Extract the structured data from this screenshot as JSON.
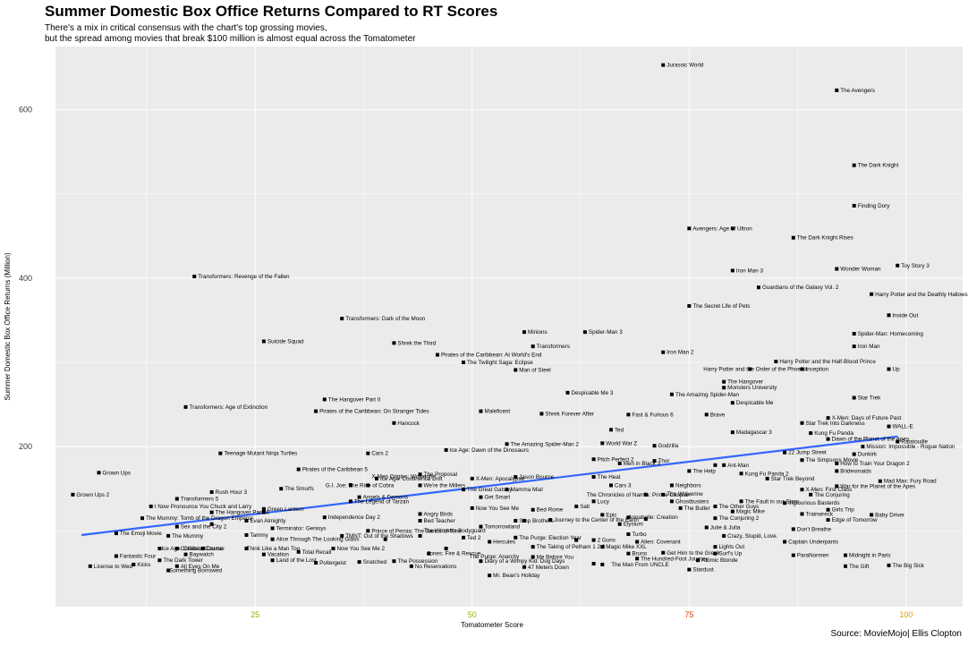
{
  "title": "Summer Domestic Box Office Returns Compared to RT Scores",
  "subtitle": [
    "There's a mix in critical consensus with the chart's top grossing movies,",
    "but the spread among movies that break $100 million is almost equal across the Tomatometer"
  ],
  "caption": "Source: MovieMojo| Ellis Clopton",
  "colors": {
    "panel_background": "#ebebeb",
    "grid": "#ffffff",
    "point": "#000000",
    "trend_line": "#3366ff",
    "x_tick_colors": [
      "#8db600",
      "#8db600",
      "#e03c00",
      "#e0a000"
    ]
  },
  "chart_data": {
    "type": "scatter",
    "xlabel": "Tomatometer Score",
    "ylabel": "Summer Domestic Box Office Returns (Million)",
    "xlim": [
      2,
      106.5
    ],
    "ylim": [
      10,
      675
    ],
    "x_ticks": [
      25,
      50,
      75,
      100
    ],
    "y_ticks": [
      200,
      400,
      600
    ],
    "grid": true,
    "legend": "none",
    "trend_line": {
      "x": [
        5,
        99
      ],
      "y": [
        95,
        212
      ]
    },
    "points": [
      {
        "x": 72,
        "y": 653,
        "label": "Jurassic World"
      },
      {
        "x": 92,
        "y": 623,
        "label": "The Avengers"
      },
      {
        "x": 94,
        "y": 534,
        "label": "The Dark Knight"
      },
      {
        "x": 94,
        "y": 486,
        "label": "Finding Dory"
      },
      {
        "x": 75,
        "y": 459,
        "label": "Avengers: Age of Ultron"
      },
      {
        "x": 87,
        "y": 448,
        "label": "The Dark Knight Rises"
      },
      {
        "x": 80,
        "y": 459,
        "label": "Avengers: Age of Ultron",
        "hide": true
      },
      {
        "x": 80,
        "y": 409,
        "label": "Iron Man 3"
      },
      {
        "x": 92,
        "y": 411,
        "label": "Wonder Woman"
      },
      {
        "x": 99,
        "y": 415,
        "label": "Toy Story 3"
      },
      {
        "x": 18,
        "y": 402,
        "label": "Transformers: Revenge of the Fallen"
      },
      {
        "x": 83,
        "y": 389,
        "label": "Guardians of the Galaxy Vol. 2"
      },
      {
        "x": 96,
        "y": 381,
        "label": "Harry Potter and the Deathly Hallows Part 2"
      },
      {
        "x": 75,
        "y": 367,
        "label": "The Secret Life of Pets"
      },
      {
        "x": 98,
        "y": 356,
        "label": "Inside Out"
      },
      {
        "x": 35,
        "y": 352,
        "label": "Transformers: Dark of the Moon"
      },
      {
        "x": 56,
        "y": 336,
        "label": "Minions"
      },
      {
        "x": 63,
        "y": 336,
        "label": "Spider-Man 3"
      },
      {
        "x": 94,
        "y": 334,
        "label": "Spider-Man: Homecoming"
      },
      {
        "x": 26,
        "y": 325,
        "label": "Suicide Squad"
      },
      {
        "x": 41,
        "y": 323,
        "label": "Shrek the Third"
      },
      {
        "x": 57,
        "y": 319,
        "label": "Transformers"
      },
      {
        "x": 94,
        "y": 319,
        "label": "Iron Man"
      },
      {
        "x": 72,
        "y": 312,
        "label": "Iron Man 2"
      },
      {
        "x": 46,
        "y": 309,
        "label": "Pirates of the Caribbean: At World's End"
      },
      {
        "x": 49,
        "y": 300,
        "label": "The Twilight Saga: Eclipse"
      },
      {
        "x": 85,
        "y": 301,
        "label": "Harry Potter and the Half-Blood Prince"
      },
      {
        "x": 88,
        "y": 292,
        "label": "Inception"
      },
      {
        "x": 55,
        "y": 291,
        "label": "Man of Steel"
      },
      {
        "x": 98,
        "y": 292,
        "label": "Up"
      },
      {
        "x": 82,
        "y": 292,
        "label": "Harry Potter and the Order of the Phoenix",
        "dx": -56
      },
      {
        "x": 79,
        "y": 277,
        "label": "The Hangover"
      },
      {
        "x": 79,
        "y": 270,
        "label": "Monsters University"
      },
      {
        "x": 61,
        "y": 264,
        "label": "Despicable Me 3"
      },
      {
        "x": 73,
        "y": 262,
        "label": "The Amazing Spider-Man"
      },
      {
        "x": 94,
        "y": 258,
        "label": "Star Trek"
      },
      {
        "x": 33,
        "y": 256,
        "label": "The Hangover Part II"
      },
      {
        "x": 80,
        "y": 252,
        "label": "Despicable Me"
      },
      {
        "x": 17,
        "y": 247,
        "label": "Transformers: Age of Extinction"
      },
      {
        "x": 32,
        "y": 242,
        "label": "Pirates of the Caribbean: On Stranger Tides"
      },
      {
        "x": 51,
        "y": 242,
        "label": "Maleficent"
      },
      {
        "x": 58,
        "y": 239,
        "label": "Shrek Forever After"
      },
      {
        "x": 68,
        "y": 238,
        "label": "Fast & Furious 6"
      },
      {
        "x": 77,
        "y": 238,
        "label": "Brave"
      },
      {
        "x": 91,
        "y": 234,
        "label": "X-Men: Days of Future Past"
      },
      {
        "x": 41,
        "y": 228,
        "label": "Hancock"
      },
      {
        "x": 88,
        "y": 228,
        "label": "Star Trek Into Darkness"
      },
      {
        "x": 66,
        "y": 220,
        "label": "Ted"
      },
      {
        "x": 80,
        "y": 217,
        "label": "Madagascar 3"
      },
      {
        "x": 89,
        "y": 216,
        "label": "Kung Fu Panda"
      },
      {
        "x": 98,
        "y": 224,
        "label": "WALL-E"
      },
      {
        "x": 91,
        "y": 209,
        "label": "Dawn of the Planet of the Apes"
      },
      {
        "x": 99,
        "y": 206,
        "label": "Ratatouille"
      },
      {
        "x": 54,
        "y": 203,
        "label": "The Amazing Spider-Man 2"
      },
      {
        "x": 65,
        "y": 204,
        "label": "World War Z"
      },
      {
        "x": 71,
        "y": 201,
        "label": "Godzilla"
      },
      {
        "x": 95,
        "y": 200,
        "label": "Mission: Impossible - Rogue Nation"
      },
      {
        "x": 47,
        "y": 196,
        "label": "Ice Age: Dawn of the Dinosaurs"
      },
      {
        "x": 86,
        "y": 193,
        "label": "22 Jump Street"
      },
      {
        "x": 94,
        "y": 191,
        "label": "Dunkirk"
      },
      {
        "x": 21,
        "y": 192,
        "label": "Teenage Mutant Ninja Turtles"
      },
      {
        "x": 38,
        "y": 192,
        "label": "Cars 2"
      },
      {
        "x": 64,
        "y": 185,
        "label": "Pitch Perfect 2"
      },
      {
        "x": 71,
        "y": 183,
        "label": "Thor"
      },
      {
        "x": 79,
        "y": 178,
        "label": "Ant-Man"
      },
      {
        "x": 88,
        "y": 184,
        "label": "The Simpsons Movie"
      },
      {
        "x": 92,
        "y": 180,
        "label": "How to Train Your Dragon 2"
      },
      {
        "x": 67,
        "y": 180,
        "label": "Men in Black 3"
      },
      {
        "x": 78,
        "y": 178,
        "label": "Ant-Man",
        "hide": true
      },
      {
        "x": 30,
        "y": 173,
        "label": "Pirates of the Caribbean 5"
      },
      {
        "x": 75,
        "y": 171,
        "label": "The Help"
      },
      {
        "x": 81,
        "y": 168,
        "label": "Kung Fu Panda 2"
      },
      {
        "x": 92,
        "y": 171,
        "label": "Bridesmaids"
      },
      {
        "x": 84,
        "y": 162,
        "label": "Star Trek Beyond"
      },
      {
        "x": 44,
        "y": 167,
        "label": "The Proposal"
      },
      {
        "x": 39,
        "y": 162,
        "label": "Ice Age: Continental Drift"
      },
      {
        "x": 50,
        "y": 162,
        "label": "X-Men: Apocalypse"
      },
      {
        "x": 55,
        "y": 164,
        "label": "Jason Bourne"
      },
      {
        "x": 64,
        "y": 164,
        "label": "The Heat"
      },
      {
        "x": 97,
        "y": 159,
        "label": "Mad Max: Fury Road"
      },
      {
        "x": 36,
        "y": 154,
        "label": "G.I. Joe: The Rise of Cobra",
        "dx": -32
      },
      {
        "x": 38,
        "y": 154,
        "label": "X-Men Origins: Wolverine",
        "dy": -10
      },
      {
        "x": 44,
        "y": 154,
        "label": "We're the Millers"
      },
      {
        "x": 66,
        "y": 154,
        "label": "Cars 3"
      },
      {
        "x": 73,
        "y": 154,
        "label": "Neighbors"
      },
      {
        "x": 88,
        "y": 149,
        "label": "X-Men: First Class"
      },
      {
        "x": 92,
        "y": 153,
        "label": "War for the Planet of the Apes"
      },
      {
        "x": 49,
        "y": 149,
        "label": "The Great Gatsby"
      },
      {
        "x": 54,
        "y": 149,
        "label": "Mamma Mia!"
      },
      {
        "x": 28,
        "y": 150,
        "label": "The Smurfs"
      },
      {
        "x": 20,
        "y": 146,
        "label": "Rush Hour 3"
      },
      {
        "x": 4,
        "y": 143,
        "label": "Grown Ups 2"
      },
      {
        "x": 7,
        "y": 169,
        "label": "Grown Ups"
      },
      {
        "x": 70,
        "y": 143,
        "label": "The Chronicles of Narnia: Prince Caspian",
        "dx": -70
      },
      {
        "x": 72,
        "y": 143,
        "label": "The Wolverine",
        "dy": -1
      },
      {
        "x": 89,
        "y": 143,
        "label": "The Conjuring"
      },
      {
        "x": 37,
        "y": 140,
        "label": "Angels & Demons"
      },
      {
        "x": 51,
        "y": 140,
        "label": "Get Smart"
      },
      {
        "x": 36,
        "y": 135,
        "label": "The Legend of Tarzan"
      },
      {
        "x": 73,
        "y": 135,
        "label": "Ghostbusters"
      },
      {
        "x": 81,
        "y": 135,
        "label": "The Fault in our Stars"
      },
      {
        "x": 16,
        "y": 138,
        "label": "Transformers 5"
      },
      {
        "x": 64,
        "y": 135,
        "label": "Lucy"
      },
      {
        "x": 78,
        "y": 129,
        "label": "The Other Guys"
      },
      {
        "x": 86,
        "y": 133,
        "label": "Inglourious Basterds"
      },
      {
        "x": 13,
        "y": 129,
        "label": "I Now Pronounce You Chuck and Larry"
      },
      {
        "x": 26,
        "y": 126,
        "label": "Green Lantern"
      },
      {
        "x": 50,
        "y": 127,
        "label": "Now You See Me"
      },
      {
        "x": 57,
        "y": 125,
        "label": "Bed Rome"
      },
      {
        "x": 62,
        "y": 129,
        "label": "Salt"
      },
      {
        "x": 74,
        "y": 127,
        "label": "The Butler"
      },
      {
        "x": 80,
        "y": 123,
        "label": "Magic Mike"
      },
      {
        "x": 91,
        "y": 125,
        "label": "Girls Trip"
      },
      {
        "x": 96,
        "y": 119,
        "label": "Baby Driver"
      },
      {
        "x": 20,
        "y": 122,
        "label": "The Hangover Part III"
      },
      {
        "x": 26,
        "y": 122,
        "label": "Ant-Man",
        "hide": true
      },
      {
        "x": 44,
        "y": 120,
        "label": "Angry Birds"
      },
      {
        "x": 65,
        "y": 119,
        "label": "Epic"
      },
      {
        "x": 88,
        "y": 120,
        "label": "Trainwreck"
      },
      {
        "x": 12,
        "y": 115,
        "label": "The Mummy: Tomb of the Dragon Emperor"
      },
      {
        "x": 33,
        "y": 116,
        "label": "Independence Day 2"
      },
      {
        "x": 68,
        "y": 116,
        "label": "Annabelle: Creation",
        "dx": -4
      },
      {
        "x": 44,
        "y": 112,
        "label": "Bed Teacher"
      },
      {
        "x": 55,
        "y": 112,
        "label": "Step Brothers"
      },
      {
        "x": 59,
        "y": 113,
        "label": "Journey to the Center of the Earth"
      },
      {
        "x": 70,
        "y": 114,
        "label": "Annabelle: Creation",
        "hide": true
      },
      {
        "x": 78,
        "y": 115,
        "label": "The Conjuring 2"
      },
      {
        "x": 91,
        "y": 113,
        "label": "Edge of Tomorrow"
      },
      {
        "x": 24,
        "y": 112,
        "label": "Evan Almighty"
      },
      {
        "x": 20,
        "y": 108,
        "label": "Ant-Man",
        "hide": true
      },
      {
        "x": 51,
        "y": 105,
        "label": "Tomorrowland"
      },
      {
        "x": 67,
        "y": 108,
        "label": "Elysium"
      },
      {
        "x": 77,
        "y": 104,
        "label": "Julie & Julia"
      },
      {
        "x": 87,
        "y": 102,
        "label": "Don't Breathe"
      },
      {
        "x": 16,
        "y": 105,
        "label": "Sex and the City 2"
      },
      {
        "x": 27,
        "y": 103,
        "label": "Terminator: Genisys"
      },
      {
        "x": 38,
        "y": 100,
        "label": "Prince of Persia: The Sands of Time"
      },
      {
        "x": 9,
        "y": 97,
        "label": "The Emoji Movie"
      },
      {
        "x": 15,
        "y": 94,
        "label": "The Mummy"
      },
      {
        "x": 24,
        "y": 95,
        "label": "Tammy"
      },
      {
        "x": 35,
        "y": 94,
        "label": "TMNT: Out of the Shadows"
      },
      {
        "x": 44,
        "y": 94,
        "label": "The Hitman's Bodyguard",
        "dy": -6
      },
      {
        "x": 49,
        "y": 92,
        "label": "Ted 2"
      },
      {
        "x": 55,
        "y": 92,
        "label": "The Purge: Election Year"
      },
      {
        "x": 68,
        "y": 96,
        "label": "Turbo"
      },
      {
        "x": 79,
        "y": 94,
        "label": "Crazy, Stupid, Love."
      },
      {
        "x": 86,
        "y": 87,
        "label": "Captain Underpants"
      },
      {
        "x": 27,
        "y": 90,
        "label": "Alice Through The Looking Glass"
      },
      {
        "x": 40,
        "y": 90,
        "label": "The Hitman's Bodyguard",
        "hide": true
      },
      {
        "x": 52,
        "y": 87,
        "label": "Hercules"
      },
      {
        "x": 64,
        "y": 89,
        "label": "2 Guns"
      },
      {
        "x": 69,
        "y": 87,
        "label": "Alien: Covenant"
      },
      {
        "x": 62,
        "y": 89,
        "label": "2 Guns",
        "hide": true
      },
      {
        "x": 16,
        "y": 79,
        "label": "Collateral"
      },
      {
        "x": 19,
        "y": 79,
        "label": "Course",
        "dx": -2
      },
      {
        "x": 24,
        "y": 79,
        "label": "Think Like a Man Too",
        "dx": -4
      },
      {
        "x": 14,
        "y": 79,
        "label": "Ice Age: Collision Course",
        "dx": -2
      },
      {
        "x": 34,
        "y": 79,
        "label": "Now You See Me 2"
      },
      {
        "x": 57,
        "y": 81,
        "label": "The Taking of Pelham 1 2 3"
      },
      {
        "x": 65,
        "y": 81,
        "label": "Magic Mike XXL"
      },
      {
        "x": 78,
        "y": 81,
        "label": "Lights Out"
      },
      {
        "x": 17,
        "y": 72,
        "label": "Baywatch"
      },
      {
        "x": 26,
        "y": 72,
        "label": "Vacation"
      },
      {
        "x": 30,
        "y": 75,
        "label": "Total Recall"
      },
      {
        "x": 45,
        "y": 73,
        "label": "Jones: Fire & Rescue",
        "dx": -6
      },
      {
        "x": 68,
        "y": 73,
        "label": "Bruno"
      },
      {
        "x": 72,
        "y": 74,
        "label": "Get Him to the Greek"
      },
      {
        "x": 78,
        "y": 73,
        "label": "Surf's Up"
      },
      {
        "x": 87,
        "y": 71,
        "label": "ParaNormen"
      },
      {
        "x": 93,
        "y": 71,
        "label": "Midnight in Paris"
      },
      {
        "x": 9,
        "y": 70,
        "label": "Fantastic Four"
      },
      {
        "x": 14,
        "y": 65,
        "label": "The Dark Tower"
      },
      {
        "x": 27,
        "y": 65,
        "label": "Land of the Lost"
      },
      {
        "x": 57,
        "y": 69,
        "label": "Me Before You"
      },
      {
        "x": 69,
        "y": 67,
        "label": "The Hundred-Foot Journey"
      },
      {
        "x": 76,
        "y": 65,
        "label": "Atomic Blonde"
      },
      {
        "x": 11,
        "y": 60,
        "label": "Kicks"
      },
      {
        "x": 16,
        "y": 58,
        "label": "All Eyes On Me"
      },
      {
        "x": 32,
        "y": 62,
        "label": "Poltergeist"
      },
      {
        "x": 37,
        "y": 63,
        "label": "Snatched"
      },
      {
        "x": 41,
        "y": 64,
        "label": "The Possession"
      },
      {
        "x": 51,
        "y": 64,
        "label": "Diary of a Wimpy Kid: Dog Days"
      },
      {
        "x": 65,
        "y": 60,
        "label": "The Man From UNCLE",
        "dx": 6
      },
      {
        "x": 64,
        "y": 61,
        "label": "The Man From UNCLE",
        "hide": true
      },
      {
        "x": 6,
        "y": 58,
        "label": "License to Wed"
      },
      {
        "x": 43,
        "y": 58,
        "label": "No Reservations"
      },
      {
        "x": 56,
        "y": 57,
        "label": "47 Meters Down"
      },
      {
        "x": 93,
        "y": 58,
        "label": "The Gift"
      },
      {
        "x": 98,
        "y": 59,
        "label": "The Big Sick"
      },
      {
        "x": 15,
        "y": 53,
        "label": "Something Borrowed",
        "dx": -3
      },
      {
        "x": 75,
        "y": 54,
        "label": "Stardust"
      },
      {
        "x": 52,
        "y": 47,
        "label": "Mr. Bean's Holiday"
      },
      {
        "x": 47,
        "y": 79,
        "label": "The Purge: Anarchy",
        "dx": 22,
        "dy": 9
      },
      {
        "x": 56,
        "y": 112,
        "label": "Step Brothers",
        "hide": true
      }
    ]
  }
}
